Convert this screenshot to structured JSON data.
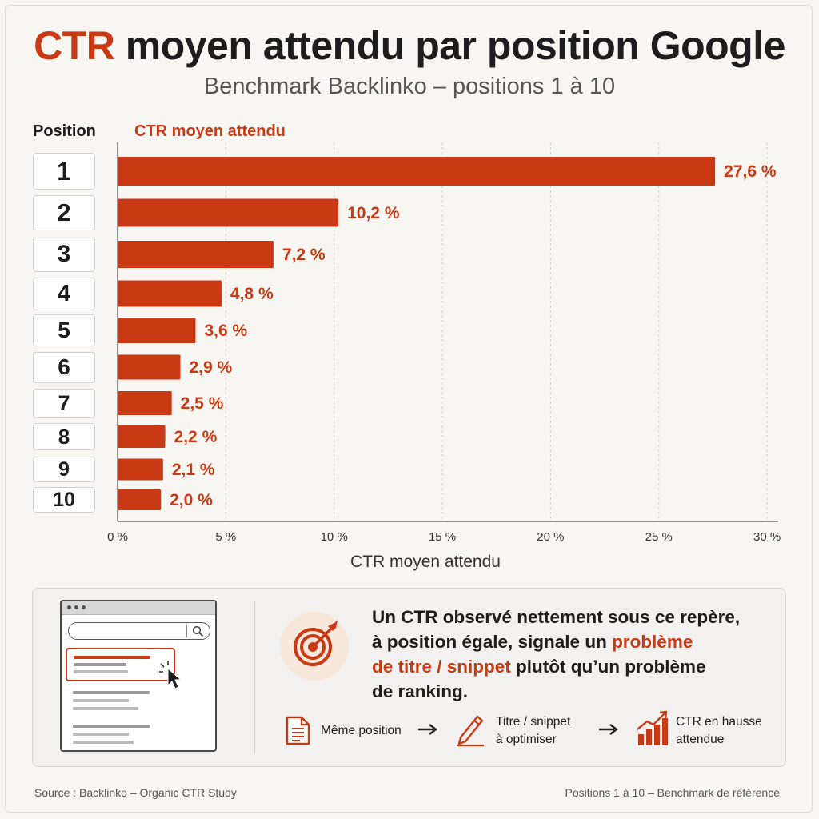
{
  "header": {
    "title_accent": "CTR",
    "title_rest": " moyen attendu par position Google",
    "subtitle": "Benchmark Backlinko – positions 1 à 10"
  },
  "columns": {
    "position_label": "Position",
    "ctr_label": "CTR moyen attendu"
  },
  "chart_data": {
    "type": "bar",
    "orientation": "horizontal",
    "categories": [
      "1",
      "2",
      "3",
      "4",
      "5",
      "6",
      "7",
      "8",
      "9",
      "10"
    ],
    "values": [
      27.6,
      10.2,
      7.2,
      4.8,
      3.6,
      2.9,
      2.5,
      2.2,
      2.1,
      2.0
    ],
    "value_labels": [
      "27,6 %",
      "10,2 %",
      "7,2 %",
      "4,8 %",
      "3,6 %",
      "2,9 %",
      "2,5 %",
      "2,2 %",
      "2,1 %",
      "2,0 %"
    ],
    "title": "CTR moyen attendu par position Google",
    "xlabel": "CTR moyen attendu",
    "ylabel": "Position",
    "xlim": [
      0,
      30
    ],
    "xticks": [
      0,
      5,
      10,
      15,
      20,
      25,
      30
    ],
    "xtick_labels": [
      "0 %",
      "5 %",
      "10 %",
      "15 %",
      "20 %",
      "25 %",
      "30 %"
    ],
    "grid": "vertical dashed",
    "bar_color": "#c93a14"
  },
  "callout": {
    "line1": "Un CTR observé nettement sous ce repère,",
    "line2_a": "à position égale, signale un ",
    "line2_hl": "problème",
    "line3_hl": "de titre / snippet",
    "line3_b": " plutôt qu’un problème",
    "line4": "de ranking."
  },
  "steps": {
    "step1": "Même position",
    "step2_line1": "Titre / snippet",
    "step2_line2": "à optimiser",
    "step3_line1": "CTR en hausse",
    "step3_line2": "attendue"
  },
  "footer": {
    "source": "Source : Backlinko – Organic CTR Study",
    "note": "Positions 1 à 10  –  Benchmark de référence"
  },
  "colors": {
    "accent": "#c93a14",
    "text": "#1d1d1d",
    "background": "#f7f6f3"
  },
  "icons": [
    "target-icon",
    "document-icon",
    "pencil-icon",
    "rising-chart-icon",
    "arrow-right-icon",
    "search-icon",
    "cursor-icon"
  ]
}
